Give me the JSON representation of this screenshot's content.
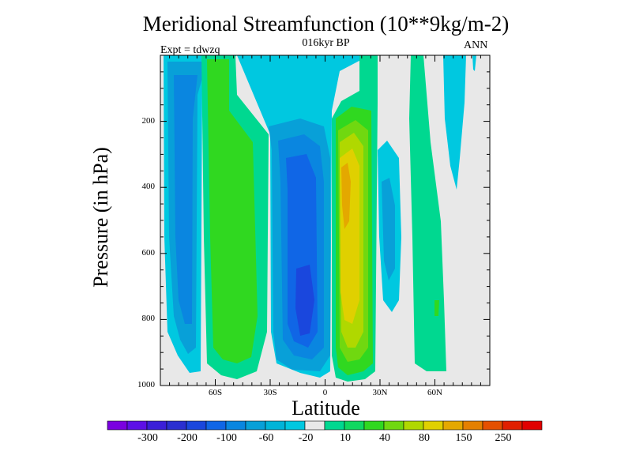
{
  "title": "Meridional Streamfunction (10**9kg/m-2)",
  "subtitle": "016kyr BP",
  "left_label": "Expt = tdwzq",
  "right_label": "ANN",
  "chart_data": {
    "type": "heatmap",
    "title": "Meridional Streamfunction (10**9kg/m-2)",
    "subtitle": "016kyr BP",
    "xlabel": "Latitude",
    "ylabel": "Pressure (in hPa)",
    "x_ticks": [
      "60S",
      "30S",
      "0",
      "30N",
      "60N"
    ],
    "x_tick_values": [
      -60,
      -30,
      0,
      30,
      60
    ],
    "xlim": [
      -90,
      90
    ],
    "y_ticks": [
      "200",
      "400",
      "600",
      "800",
      "1000"
    ],
    "y_tick_values": [
      200,
      400,
      600,
      800,
      1000
    ],
    "ylim": [
      1000,
      0
    ],
    "colorbar_labels": [
      "-300",
      "-200",
      "-100",
      "-60",
      "-20",
      "10",
      "40",
      "80",
      "150",
      "250"
    ],
    "colorbar_colors": [
      "#7a00e0",
      "#5d10e6",
      "#3b1fd8",
      "#2a2fd0",
      "#1a47dd",
      "#1066e6",
      "#0a86e0",
      "#08a0d8",
      "#00b4d8",
      "#00c8e0",
      "#e8e8e8",
      "#00d890",
      "#10d860",
      "#30d820",
      "#70d810",
      "#b0d800",
      "#e0d000",
      "#e4a800",
      "#e48000",
      "#e45000",
      "#e02000",
      "#e00000"
    ],
    "features": [
      {
        "sign": "negative",
        "lat_range": [
          -85,
          -60
        ],
        "p_range": [
          0,
          1000
        ],
        "min_level": "-100"
      },
      {
        "sign": "positive",
        "lat_range": [
          -63,
          -35
        ],
        "p_range": [
          0,
          1000
        ],
        "max_level": "40"
      },
      {
        "sign": "negative",
        "lat_range": [
          -30,
          5
        ],
        "p_range": [
          150,
          1000
        ],
        "min_level": "-100",
        "min_center": [
          -13,
          780
        ]
      },
      {
        "sign": "positive",
        "lat_range": [
          5,
          25
        ],
        "p_range": [
          0,
          1000
        ],
        "max_level": "150",
        "max_center": [
          12,
          400
        ]
      },
      {
        "sign": "negative",
        "lat_range": [
          28,
          40
        ],
        "p_range": [
          250,
          830
        ],
        "min_level": "-20"
      },
      {
        "sign": "positive",
        "lat_range": [
          45,
          63
        ],
        "p_range": [
          0,
          1000
        ],
        "max_level": "40"
      },
      {
        "sign": "negative",
        "lat_range": [
          65,
          80
        ],
        "p_range": [
          0,
          450
        ],
        "min_level": "-20"
      }
    ]
  }
}
